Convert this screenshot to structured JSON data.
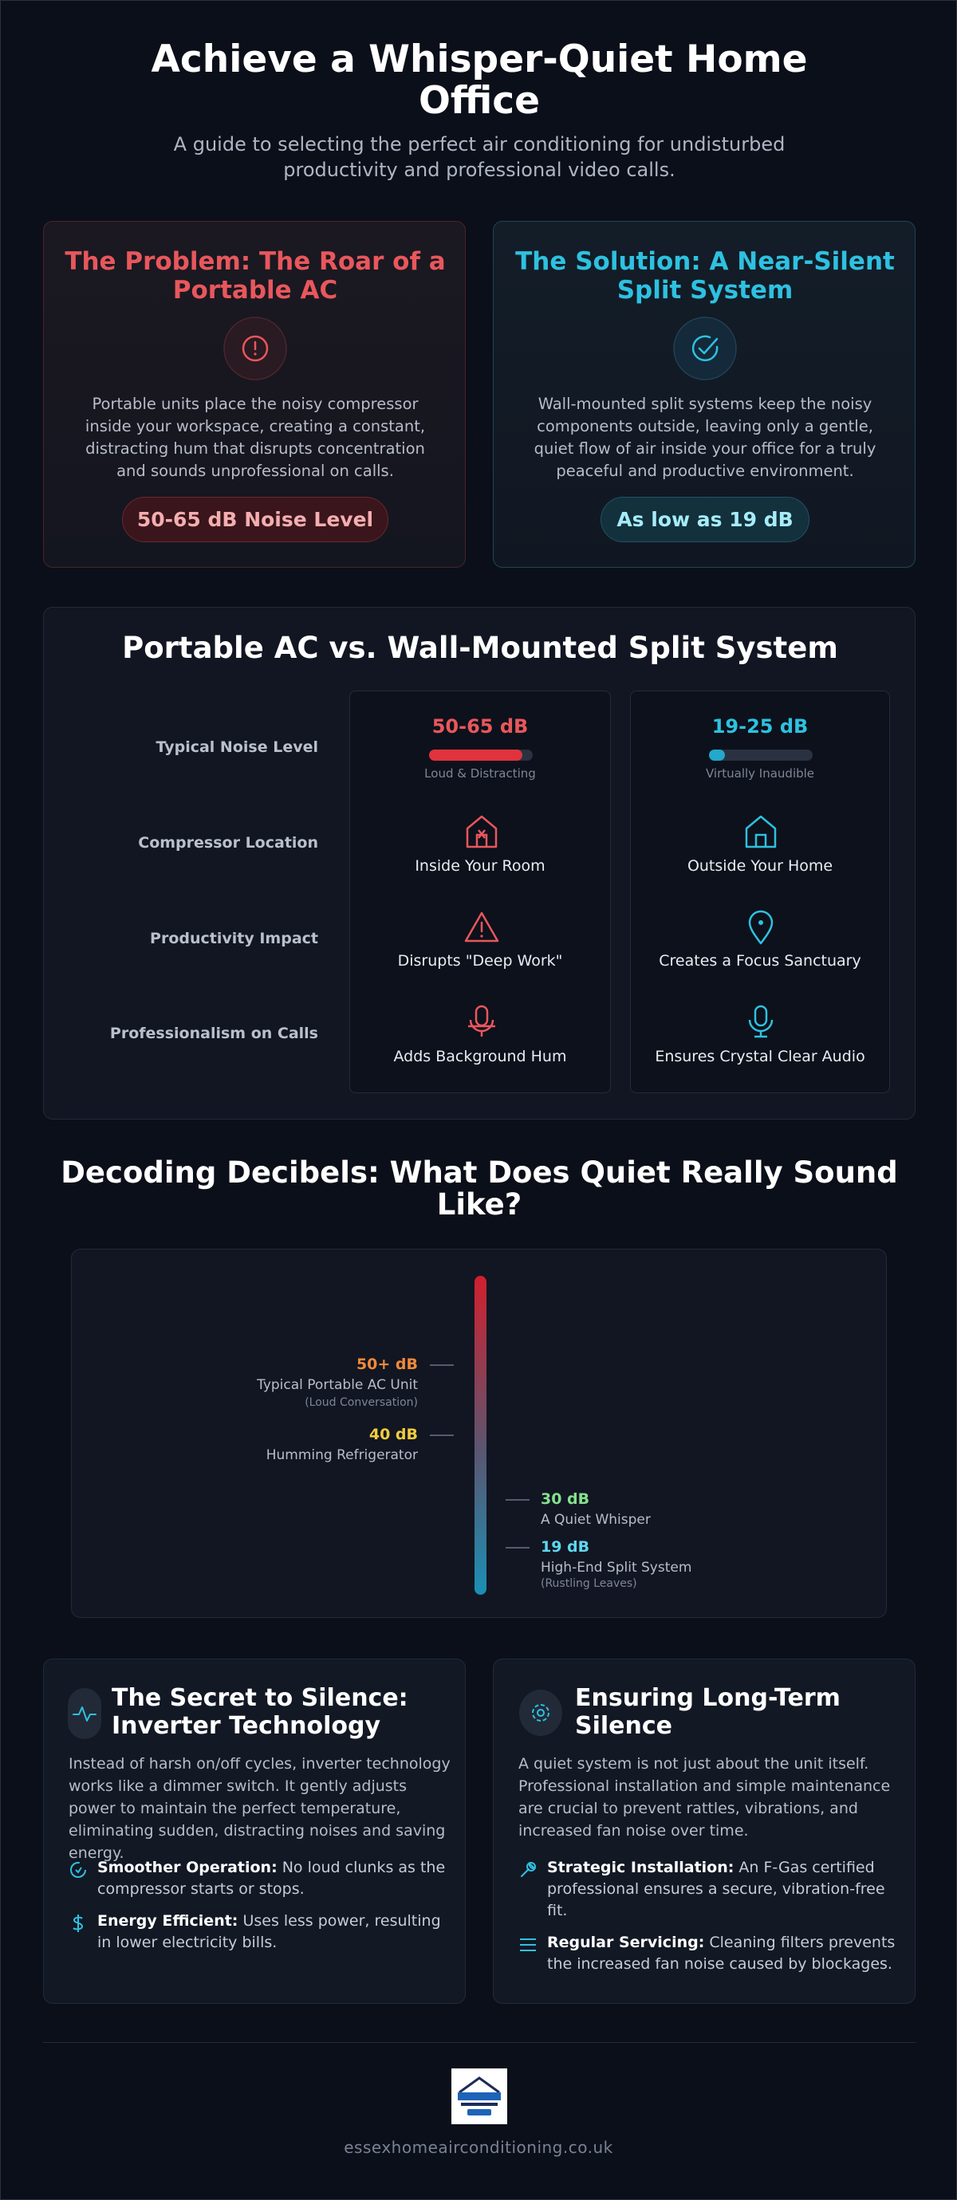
{
  "header": {
    "title": "Achieve a Whisper-Quiet Home Office",
    "subtitle": "A guide to selecting the perfect air conditioning for undisturbed productivity and professional video calls."
  },
  "problem": {
    "title": "The Problem: The Roar of a Portable AC",
    "text": "Portable units place the noisy compressor inside your workspace, creating a constant, distracting hum that disrupts concentration and sounds unprofessional on calls.",
    "badge": "50-65 dB Noise Level"
  },
  "solution": {
    "title": "The Solution: A Near-Silent Split System",
    "text": "Wall-mounted split systems keep the noisy components outside, leaving only a gentle, quiet flow of air inside your office for a truly peaceful and productive environment.",
    "badge": "As low as 19 dB"
  },
  "comparison": {
    "title": "Portable AC vs. Wall-Mounted Split System",
    "rows": [
      {
        "label": "Typical Noise Level",
        "portable": "50-65 dB",
        "portable_note": "Loud & Distracting",
        "split": "19-25 dB",
        "split_note": "Virtually Inaudible"
      },
      {
        "label": "Compressor Location",
        "portable": "Inside Your Room",
        "split": "Outside Your Home"
      },
      {
        "label": "Productivity Impact",
        "portable": "Disrupts \"Deep Work\"",
        "split": "Creates a Focus Sanctuary"
      },
      {
        "label": "Professionalism on Calls",
        "portable": "Adds Background Hum",
        "split": "Ensures Crystal Clear Audio"
      }
    ]
  },
  "decibels": {
    "title": "Decoding Decibels: What Does Quiet Really Sound Like?",
    "levels": [
      {
        "level": "50+ dB",
        "label": "Typical Portable AC Unit",
        "note": "(Loud Conversation)"
      },
      {
        "level": "40 dB",
        "label": "Humming Refrigerator"
      },
      {
        "level": "30 dB",
        "label": "A Quiet Whisper"
      },
      {
        "level": "19 dB",
        "label": "High-End Split System",
        "note": "(Rustling Leaves)"
      }
    ]
  },
  "inverter": {
    "title": "The Secret to Silence: Inverter Technology",
    "text": "Instead of harsh on/off cycles, inverter technology works like a dimmer switch. It gently adjusts power to maintain the perfect temperature, eliminating sudden, distracting noises and saving energy.",
    "points": [
      {
        "lead": "Smoother Operation:",
        "text": "No loud clunks as the compressor starts or stops."
      },
      {
        "lead": "Energy Efficient:",
        "text": "Uses less power, resulting in lower electricity bills."
      }
    ]
  },
  "longterm": {
    "title": "Ensuring Long-Term Silence",
    "text": "A quiet system is not just about the unit itself. Professional installation and simple maintenance are crucial to prevent rattles, vibrations, and increased fan noise over time.",
    "points": [
      {
        "lead": "Strategic Installation:",
        "text": "An F-Gas certified professional ensures a secure, vibration-free fit."
      },
      {
        "lead": "Regular Servicing:",
        "text": "Cleaning filters prevents the increased fan noise caused by blockages."
      }
    ]
  },
  "footer": {
    "url": "essexhomeairconditioning.co.uk"
  }
}
